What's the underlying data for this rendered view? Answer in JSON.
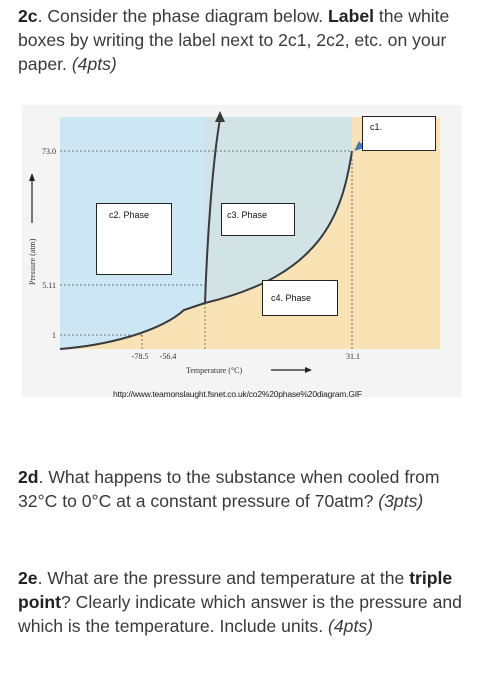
{
  "q2c": {
    "number": "2c",
    "text_a": ". Consider the phase diagram below. ",
    "bold": "Label",
    "text_b": " the white boxes by writing the label next to 2c1, 2c2, etc. on your paper. ",
    "points": "(4pts)"
  },
  "diagram": {
    "box_labels": {
      "c1": "c1.",
      "c2": "c2. Phase",
      "c3": "c3. Phase",
      "c4": "c4. Phase"
    },
    "y_axis_label": "Pressure (atm)",
    "x_axis_label": "Temperature (°C)",
    "y_ticks": [
      "73.0",
      "5.11",
      "1"
    ],
    "x_ticks": [
      "-78.5",
      "-56.4",
      "31.1"
    ],
    "colors": {
      "solid_region": "#cde6f4",
      "liquid_region": "#d2e3e5",
      "gas_region": "#f9e2b4",
      "curve": "#3a3a3a",
      "arrow": "#3b78c6",
      "dashed": "#555555"
    }
  },
  "source_url": "http://www.teamonslaught.fsnet.co.uk/co2%20phase%20diagram.GIF",
  "q2d": {
    "number": "2d",
    "text": ". What happens to the substance when cooled from 32°C to 0°C at a constant pressure of 70atm? ",
    "points": "(3pts)"
  },
  "q2e": {
    "number": "2e",
    "text_a": ". What are the pressure and temperature at the ",
    "bold": "triple point",
    "text_b": "? Clearly indicate which answer is the pressure and which is the temperature.  Include units. ",
    "points": "(4pts)"
  }
}
